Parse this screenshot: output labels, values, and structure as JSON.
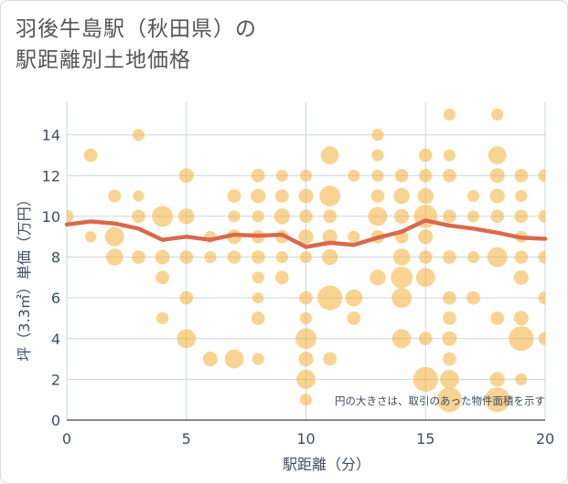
{
  "title_lines": [
    "羽後牛島駅（秋田県）の",
    "駅距離別土地価格"
  ],
  "chart_data": {
    "type": "scatter",
    "title": "羽後牛島駅（秋田県）の駅距離別土地価格",
    "xlabel": "駅距離（分）",
    "ylabel": "坪（3.3㎡）単価（万円）",
    "xlim": [
      0,
      20
    ],
    "ylim": [
      0,
      15.6
    ],
    "xticks": [
      0,
      5,
      10,
      15,
      20
    ],
    "yticks": [
      0,
      2,
      4,
      6,
      8,
      10,
      12,
      14
    ],
    "grid": true,
    "annotation": "円の大きさは、取引のあった物件面積を示す",
    "colors": {
      "bubble": "#f5b342",
      "line": "#d9694e",
      "grid": "#c9d6e3",
      "text": "#3d4f5f"
    },
    "bubbles": [
      {
        "x": 1,
        "y": 13,
        "s": 1
      },
      {
        "x": 3,
        "y": 14,
        "s": 0.8
      },
      {
        "x": 0,
        "y": 10,
        "s": 1
      },
      {
        "x": 1,
        "y": 9,
        "s": 0.7
      },
      {
        "x": 2,
        "y": 11,
        "s": 0.9
      },
      {
        "x": 2,
        "y": 9,
        "s": 2
      },
      {
        "x": 2,
        "y": 8,
        "s": 1.6
      },
      {
        "x": 3,
        "y": 11,
        "s": 0.7
      },
      {
        "x": 3,
        "y": 10,
        "s": 1
      },
      {
        "x": 3,
        "y": 8,
        "s": 1
      },
      {
        "x": 4,
        "y": 10,
        "s": 2.4
      },
      {
        "x": 4,
        "y": 8,
        "s": 1.2
      },
      {
        "x": 4,
        "y": 7,
        "s": 1
      },
      {
        "x": 4,
        "y": 5,
        "s": 0.8
      },
      {
        "x": 5,
        "y": 12,
        "s": 1.2
      },
      {
        "x": 5,
        "y": 10,
        "s": 1.4
      },
      {
        "x": 5,
        "y": 8,
        "s": 1
      },
      {
        "x": 5,
        "y": 6,
        "s": 1
      },
      {
        "x": 5,
        "y": 4,
        "s": 2
      },
      {
        "x": 6,
        "y": 9,
        "s": 0.8
      },
      {
        "x": 6,
        "y": 8,
        "s": 0.8
      },
      {
        "x": 6,
        "y": 3,
        "s": 1.2
      },
      {
        "x": 7,
        "y": 11,
        "s": 1
      },
      {
        "x": 7,
        "y": 10,
        "s": 0.8
      },
      {
        "x": 7,
        "y": 9,
        "s": 1.2
      },
      {
        "x": 7,
        "y": 8,
        "s": 1
      },
      {
        "x": 7,
        "y": 3,
        "s": 2
      },
      {
        "x": 8,
        "y": 12,
        "s": 1
      },
      {
        "x": 8,
        "y": 11,
        "s": 1.2
      },
      {
        "x": 8,
        "y": 10,
        "s": 0.8
      },
      {
        "x": 8,
        "y": 9,
        "s": 1
      },
      {
        "x": 8,
        "y": 8,
        "s": 1
      },
      {
        "x": 8,
        "y": 7,
        "s": 0.8
      },
      {
        "x": 8,
        "y": 6,
        "s": 0.7
      },
      {
        "x": 8,
        "y": 5,
        "s": 1
      },
      {
        "x": 8,
        "y": 3,
        "s": 0.8
      },
      {
        "x": 9,
        "y": 12,
        "s": 0.8
      },
      {
        "x": 9,
        "y": 11,
        "s": 1
      },
      {
        "x": 9,
        "y": 10,
        "s": 1.4
      },
      {
        "x": 9,
        "y": 9,
        "s": 1
      },
      {
        "x": 9,
        "y": 8,
        "s": 0.8
      },
      {
        "x": 9,
        "y": 7,
        "s": 1
      },
      {
        "x": 10,
        "y": 12,
        "s": 0.8
      },
      {
        "x": 10,
        "y": 11,
        "s": 1.2
      },
      {
        "x": 10,
        "y": 10,
        "s": 1
      },
      {
        "x": 10,
        "y": 9,
        "s": 1.2
      },
      {
        "x": 10,
        "y": 8,
        "s": 0.8
      },
      {
        "x": 10,
        "y": 6,
        "s": 1
      },
      {
        "x": 10,
        "y": 5,
        "s": 0.8
      },
      {
        "x": 10,
        "y": 4,
        "s": 2.4
      },
      {
        "x": 10,
        "y": 3,
        "s": 1.2
      },
      {
        "x": 10,
        "y": 2,
        "s": 2
      },
      {
        "x": 10,
        "y": 1,
        "s": 0.8
      },
      {
        "x": 11,
        "y": 13,
        "s": 1.8
      },
      {
        "x": 11,
        "y": 11,
        "s": 2.4
      },
      {
        "x": 11,
        "y": 10,
        "s": 1
      },
      {
        "x": 11,
        "y": 9,
        "s": 1.2
      },
      {
        "x": 11,
        "y": 8,
        "s": 1.4
      },
      {
        "x": 11,
        "y": 6,
        "s": 3.4
      },
      {
        "x": 11,
        "y": 3,
        "s": 1
      },
      {
        "x": 12,
        "y": 12,
        "s": 0.8
      },
      {
        "x": 12,
        "y": 9,
        "s": 0.8
      },
      {
        "x": 12,
        "y": 6,
        "s": 1.6
      },
      {
        "x": 12,
        "y": 5,
        "s": 1
      },
      {
        "x": 13,
        "y": 14,
        "s": 0.8
      },
      {
        "x": 13,
        "y": 13,
        "s": 0.8
      },
      {
        "x": 13,
        "y": 12,
        "s": 0.8
      },
      {
        "x": 13,
        "y": 11,
        "s": 1
      },
      {
        "x": 13,
        "y": 10,
        "s": 2
      },
      {
        "x": 13,
        "y": 9,
        "s": 1
      },
      {
        "x": 13,
        "y": 7,
        "s": 1.4
      },
      {
        "x": 14,
        "y": 12,
        "s": 1
      },
      {
        "x": 14,
        "y": 11,
        "s": 1.4
      },
      {
        "x": 14,
        "y": 10,
        "s": 1.2
      },
      {
        "x": 14,
        "y": 9,
        "s": 1
      },
      {
        "x": 14,
        "y": 8,
        "s": 1.6
      },
      {
        "x": 14,
        "y": 7,
        "s": 2.6
      },
      {
        "x": 14,
        "y": 6,
        "s": 2.2
      },
      {
        "x": 14,
        "y": 4,
        "s": 2
      },
      {
        "x": 15,
        "y": 13,
        "s": 1
      },
      {
        "x": 15,
        "y": 12,
        "s": 1
      },
      {
        "x": 15,
        "y": 11,
        "s": 1.4
      },
      {
        "x": 15,
        "y": 10,
        "s": 3
      },
      {
        "x": 15,
        "y": 9,
        "s": 1.2
      },
      {
        "x": 15,
        "y": 8,
        "s": 1
      },
      {
        "x": 15,
        "y": 7,
        "s": 2
      },
      {
        "x": 15,
        "y": 4,
        "s": 1
      },
      {
        "x": 15,
        "y": 2,
        "s": 3.4
      },
      {
        "x": 16,
        "y": 15,
        "s": 0.8
      },
      {
        "x": 16,
        "y": 13,
        "s": 0.8
      },
      {
        "x": 16,
        "y": 12,
        "s": 1
      },
      {
        "x": 16,
        "y": 10,
        "s": 1
      },
      {
        "x": 16,
        "y": 8,
        "s": 1
      },
      {
        "x": 16,
        "y": 6,
        "s": 1
      },
      {
        "x": 16,
        "y": 5,
        "s": 1
      },
      {
        "x": 16,
        "y": 4,
        "s": 1.2
      },
      {
        "x": 16,
        "y": 3,
        "s": 1
      },
      {
        "x": 16,
        "y": 2,
        "s": 2
      },
      {
        "x": 16,
        "y": 1,
        "s": 3.4
      },
      {
        "x": 17,
        "y": 11,
        "s": 0.8
      },
      {
        "x": 17,
        "y": 10,
        "s": 0.8
      },
      {
        "x": 17,
        "y": 8,
        "s": 0.8
      },
      {
        "x": 17,
        "y": 6,
        "s": 1
      },
      {
        "x": 18,
        "y": 15,
        "s": 0.8
      },
      {
        "x": 18,
        "y": 13,
        "s": 1.8
      },
      {
        "x": 18,
        "y": 12,
        "s": 1.2
      },
      {
        "x": 18,
        "y": 11,
        "s": 1.2
      },
      {
        "x": 18,
        "y": 10,
        "s": 1
      },
      {
        "x": 18,
        "y": 8,
        "s": 2.2
      },
      {
        "x": 18,
        "y": 5,
        "s": 1
      },
      {
        "x": 18,
        "y": 2,
        "s": 1.2
      },
      {
        "x": 18,
        "y": 1,
        "s": 3.4
      },
      {
        "x": 19,
        "y": 12,
        "s": 1
      },
      {
        "x": 19,
        "y": 11,
        "s": 0.8
      },
      {
        "x": 19,
        "y": 10,
        "s": 1
      },
      {
        "x": 19,
        "y": 9,
        "s": 0.8
      },
      {
        "x": 19,
        "y": 8,
        "s": 1
      },
      {
        "x": 19,
        "y": 7,
        "s": 1.2
      },
      {
        "x": 19,
        "y": 5,
        "s": 1.2
      },
      {
        "x": 19,
        "y": 4,
        "s": 3.4
      },
      {
        "x": 19,
        "y": 2,
        "s": 0.8
      },
      {
        "x": 20,
        "y": 12,
        "s": 1
      },
      {
        "x": 20,
        "y": 10,
        "s": 1
      },
      {
        "x": 20,
        "y": 8,
        "s": 1
      },
      {
        "x": 20,
        "y": 6,
        "s": 1
      },
      {
        "x": 20,
        "y": 4,
        "s": 1
      }
    ],
    "trend": {
      "x": [
        0,
        1,
        2,
        3,
        4,
        5,
        6,
        7,
        8,
        9,
        10,
        11,
        12,
        13,
        14,
        15,
        16,
        17,
        18,
        19,
        20
      ],
      "y": [
        9.6,
        9.75,
        9.65,
        9.4,
        8.85,
        9.0,
        8.85,
        9.1,
        9.05,
        9.1,
        8.5,
        8.7,
        8.6,
        8.95,
        9.25,
        9.8,
        9.55,
        9.4,
        9.2,
        8.95,
        8.9
      ]
    }
  }
}
